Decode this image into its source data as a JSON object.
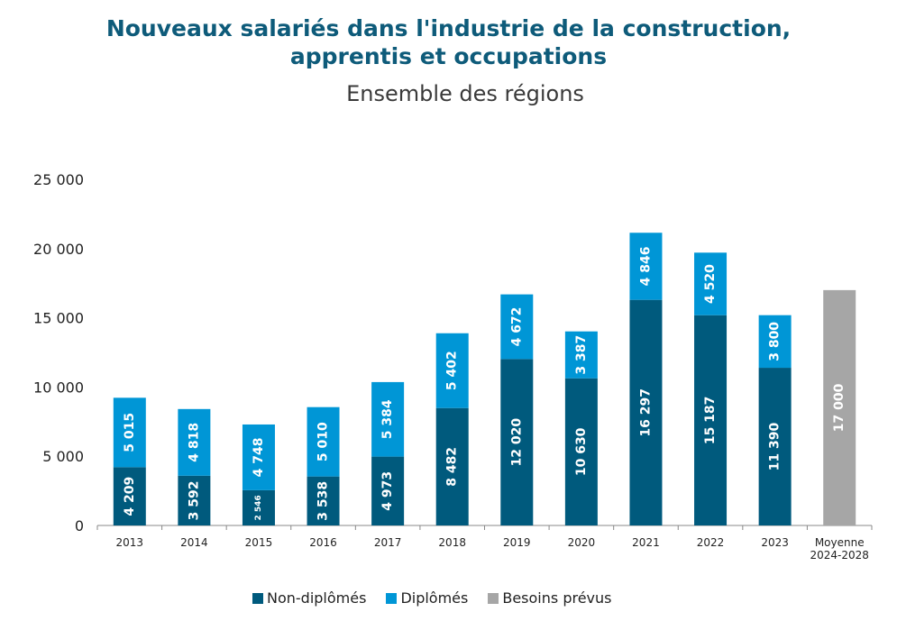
{
  "chart_data": {
    "type": "bar",
    "stacked": true,
    "title": "Nouveaux salariés dans l'industrie de la construction, apprentis et occupations",
    "title_lines": [
      "Nouveaux salariés dans l'industrie de la construction,",
      "apprentis et occupations"
    ],
    "subtitle": "Ensemble des régions",
    "xlabel": "",
    "ylabel": "",
    "ylim": [
      0,
      25000
    ],
    "yticks": [
      0,
      5000,
      10000,
      15000,
      20000,
      25000
    ],
    "ytick_labels": [
      "0",
      "5 000",
      "10 000",
      "15 000",
      "20 000",
      "25 000"
    ],
    "grid": false,
    "categories": [
      "2013",
      "2014",
      "2015",
      "2016",
      "2017",
      "2018",
      "2019",
      "2020",
      "2021",
      "2022",
      "2023",
      "Moyenne 2024-2028"
    ],
    "category_label_lines": [
      [
        "2013"
      ],
      [
        "2014"
      ],
      [
        "2015"
      ],
      [
        "2016"
      ],
      [
        "2017"
      ],
      [
        "2018"
      ],
      [
        "2019"
      ],
      [
        "2020"
      ],
      [
        "2021"
      ],
      [
        "2022"
      ],
      [
        "2023"
      ],
      [
        "Moyenne",
        "2024-2028"
      ]
    ],
    "series": [
      {
        "name": "Non-diplômés",
        "color": "#005a7d",
        "values": [
          4209,
          3592,
          2546,
          3538,
          4973,
          8482,
          12020,
          10630,
          16297,
          15187,
          11390,
          null
        ],
        "labels": [
          "4 209",
          "3 592",
          "2 546",
          "3 538",
          "4 973",
          "8 482",
          "12 020",
          "10 630",
          "16 297",
          "15 187",
          "11 390",
          ""
        ]
      },
      {
        "name": "Diplômés",
        "color": "#0096d6",
        "values": [
          5015,
          4818,
          4748,
          5010,
          5384,
          5402,
          4672,
          3387,
          4846,
          4520,
          3800,
          null
        ],
        "labels": [
          "5 015",
          "4 818",
          "4 748",
          "5 010",
          "5 384",
          "5 402",
          "4 672",
          "3 387",
          "4 846",
          "4 520",
          "3 800",
          ""
        ]
      },
      {
        "name": "Besoins prévus",
        "color": "#a6a6a6",
        "values": [
          null,
          null,
          null,
          null,
          null,
          null,
          null,
          null,
          null,
          null,
          null,
          17000
        ],
        "labels": [
          "",
          "",
          "",
          "",
          "",
          "",
          "",
          "",
          "",
          "",
          "",
          "17 000"
        ]
      }
    ],
    "legend": {
      "position": "bottom",
      "entries": [
        "Non-diplômés",
        "Diplômés",
        "Besoins prévus"
      ]
    }
  }
}
